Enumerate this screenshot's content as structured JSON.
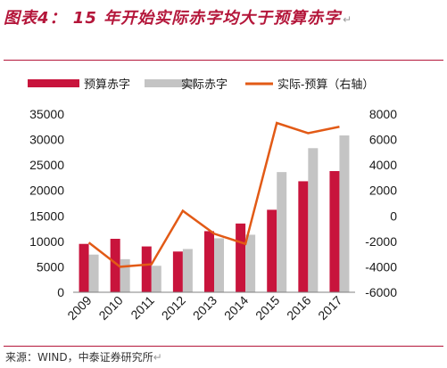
{
  "title": "图表4： 15 年开始实际赤字均大于预算赤字",
  "title_mark": "↵",
  "source": "来源：WIND，中泰证券研究所",
  "source_mark": "↵",
  "colors": {
    "budget_bar": "#c8143c",
    "actual_bar": "#c4c4c4",
    "diff_line": "#e25a16",
    "title": "#b4163a"
  },
  "chart_data": {
    "type": "bar",
    "categories": [
      "2009",
      "2010",
      "2011",
      "2012",
      "2013",
      "2014",
      "2015",
      "2016",
      "2017"
    ],
    "series": [
      {
        "name": "预算赤字",
        "type": "bar",
        "axis": "left",
        "values": [
          9500,
          10500,
          9000,
          8000,
          12000,
          13500,
          16200,
          21800,
          23800
        ]
      },
      {
        "name": "实际赤字",
        "type": "bar",
        "axis": "left",
        "values": [
          7400,
          6500,
          5200,
          8500,
          10600,
          11300,
          23600,
          28300,
          30800
        ]
      },
      {
        "name": "实际-预算（右轴）",
        "type": "line",
        "axis": "right",
        "values": [
          -2100,
          -4000,
          -3800,
          400,
          -1400,
          -2200,
          7300,
          6500,
          7000
        ]
      }
    ],
    "ylim_left": [
      0,
      35000
    ],
    "yticks_left": [
      0,
      5000,
      10000,
      15000,
      20000,
      25000,
      30000,
      35000
    ],
    "ylim_right": [
      -6000,
      8000
    ],
    "yticks_right": [
      -6000,
      -4000,
      -2000,
      0,
      2000,
      4000,
      6000,
      8000
    ],
    "grid": false,
    "legend_position": "top"
  }
}
